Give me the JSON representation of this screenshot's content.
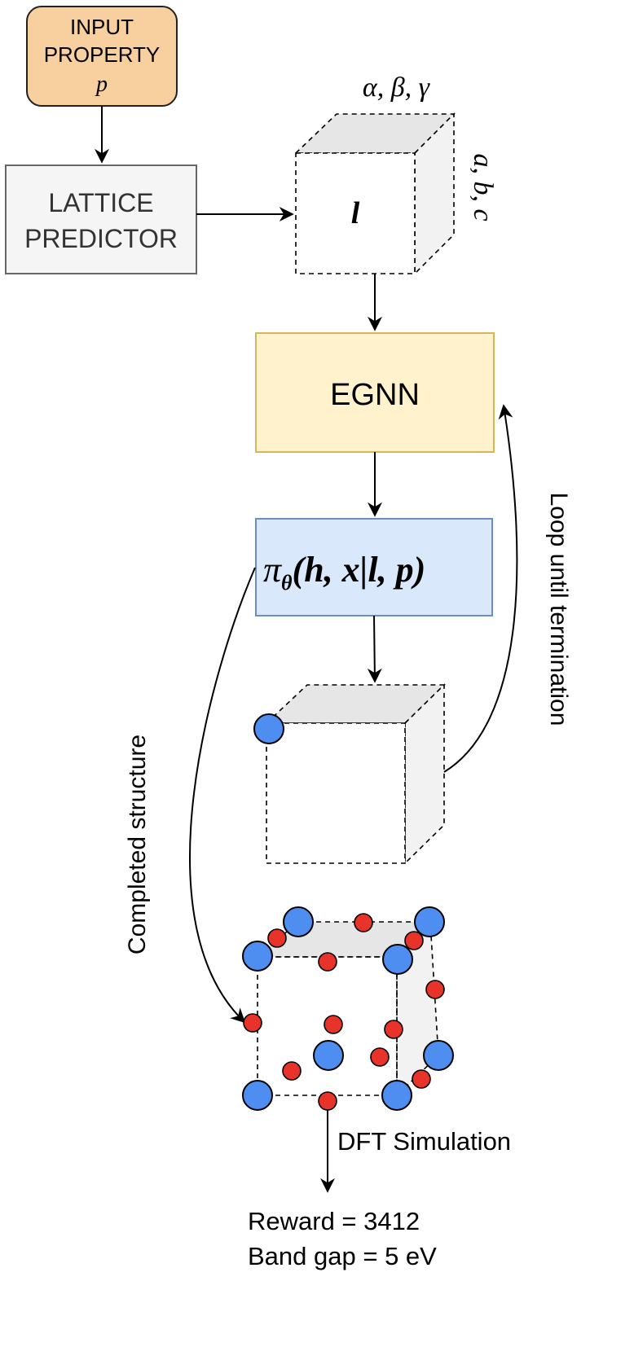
{
  "input_box": {
    "line1": "INPUT",
    "line2": "PROPERTY",
    "symbol": "p",
    "fill": "#f8d0a0",
    "stroke": "#222222"
  },
  "lattice_predictor": {
    "line1": "LATTICE",
    "line2": "PREDICTOR",
    "fill": "#f5f5f5",
    "stroke": "#666666"
  },
  "lattice_cell": {
    "symbol": "l",
    "angles_label": "α, β, γ",
    "lengths_label": "a, b, c"
  },
  "egnn": {
    "label": "EGNN",
    "fill": "#fff2cc",
    "stroke": "#d6b656"
  },
  "policy": {
    "pi": "π",
    "theta": "θ",
    "args": "(h, x|l, p)",
    "fill": "#dae8fc",
    "stroke": "#6c8ebf"
  },
  "loop_label": "Loop until termination",
  "completed_label": "Completed structure",
  "dft_label": "DFT Simulation",
  "reward_line": "Reward = 3412",
  "bandgap_line": "Band gap = 5 eV",
  "colors": {
    "atom_large": "#4e8ef0",
    "atom_small": "#e8332a",
    "cell_face": "#e6e6e6"
  }
}
